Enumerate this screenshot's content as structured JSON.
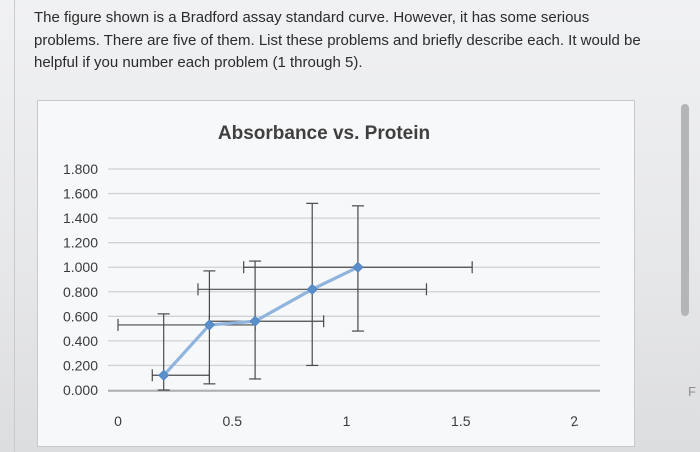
{
  "question": {
    "text": "The figure shown is a Bradford assay standard curve. However, it has some serious problems. There are five of them. List these problems and briefly describe each. It would be helpful if you number each problem (1 through 5)."
  },
  "edge_text": "F",
  "colors": {
    "line": "#8fb4dd",
    "marker": "#5b8fcb",
    "errorbar": "#4a4a4a",
    "grid": "#cfd2d6"
  },
  "chart_data": {
    "type": "line",
    "title": "Absorbance vs. Protein",
    "xlabel": "",
    "ylabel": "",
    "xlim": [
      0,
      2
    ],
    "ylim": [
      0,
      1.8
    ],
    "x_ticks": [
      {
        "v": 0,
        "label": "0"
      },
      {
        "v": 0.5,
        "label": "0.5"
      },
      {
        "v": 1,
        "label": "1"
      },
      {
        "v": 1.5,
        "label": "1.5"
      },
      {
        "v": 2,
        "label": "2"
      }
    ],
    "y_ticks": [
      {
        "v": 0,
        "label": "0.000"
      },
      {
        "v": 0.2,
        "label": "0.200"
      },
      {
        "v": 0.4,
        "label": "0.400"
      },
      {
        "v": 0.6,
        "label": "0.600"
      },
      {
        "v": 0.8,
        "label": "0.800"
      },
      {
        "v": 1.0,
        "label": "1.000"
      },
      {
        "v": 1.2,
        "label": "1.200"
      },
      {
        "v": 1.4,
        "label": "1.400"
      },
      {
        "v": 1.6,
        "label": "1.600"
      },
      {
        "v": 1.8,
        "label": "1.800"
      }
    ],
    "grid": true,
    "legend": "none",
    "series": [
      {
        "points": [
          {
            "x": 0.2,
            "y": 0.12,
            "xerr": [
              0.05,
              0.2
            ],
            "yerr": [
              0.12,
              0.5
            ]
          },
          {
            "x": 0.4,
            "y": 0.53,
            "xerr": [
              0.4,
              0.2
            ],
            "yerr": [
              0.48,
              0.44
            ]
          },
          {
            "x": 0.6,
            "y": 0.56,
            "xerr": [
              0.2,
              0.3
            ],
            "yerr": [
              0.47,
              0.49
            ]
          },
          {
            "x": 0.85,
            "y": 0.82,
            "xerr": [
              0.5,
              0.5
            ],
            "yerr": [
              0.62,
              0.7
            ]
          },
          {
            "x": 1.05,
            "y": 1.0,
            "xerr": [
              0.5,
              0.5
            ],
            "yerr": [
              0.52,
              0.5
            ]
          }
        ]
      }
    ]
  }
}
